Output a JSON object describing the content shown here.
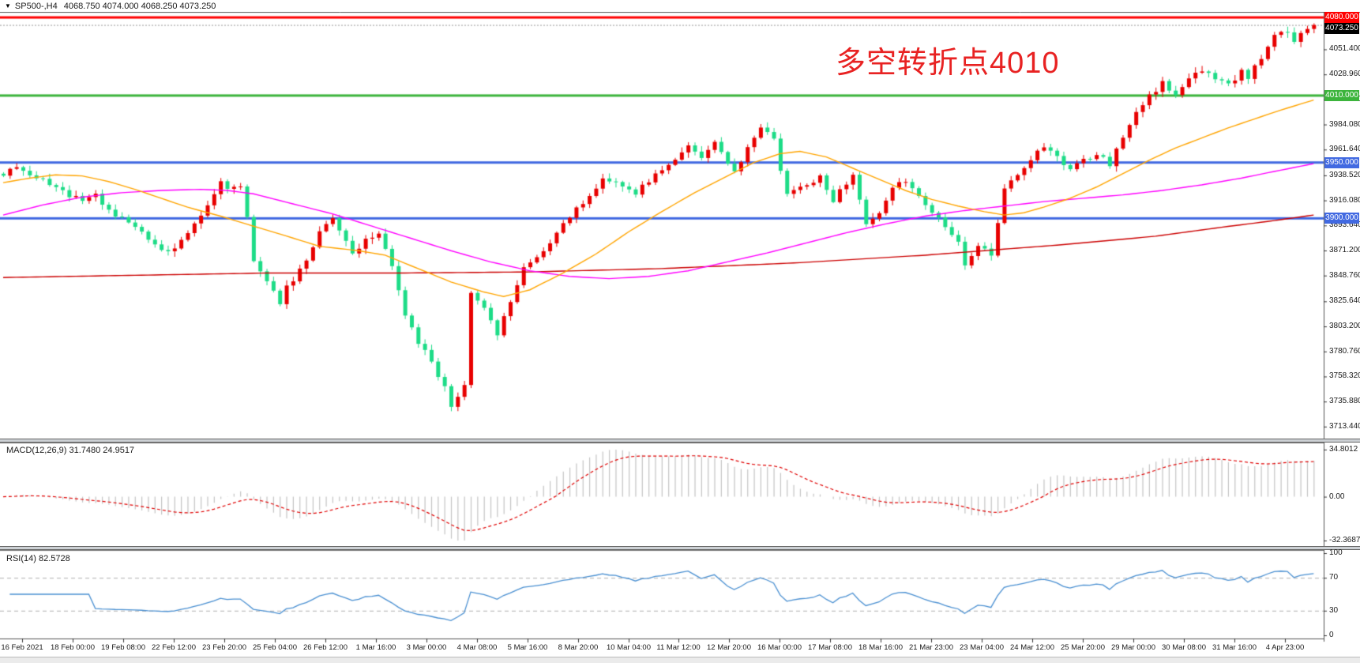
{
  "window": {
    "symbol_timeframe": "SP500-,H4",
    "ohlc_readout": "4068.750 4074.000 4068.250 4073.250",
    "dropdown_icon": "▼"
  },
  "annotation": {
    "text": "多空转折点4010",
    "color": "#e82222"
  },
  "colors": {
    "up_candle": "#e80000",
    "down_candle": "#1ddc87",
    "ma_orange": "#ffa500",
    "ma_magenta": "#ff00ff",
    "ma_red": "#cc0000",
    "hline_red": "#ff0000",
    "hline_green": "#3cb43c",
    "hline_blue": "#4169e1",
    "current_price_bg": "#000000",
    "macd_hist": "#c4c4c4",
    "macd_signal": "#e00000",
    "rsi_line": "#4a90d2",
    "rsi_levels": "#b0b0b0",
    "panel_border": "#555555",
    "axis_text": "#1a1a1a"
  },
  "price_axis": {
    "ticks": [
      "4051.400",
      "4028.960",
      "4006.520",
      "3984.080",
      "3961.640",
      "3938.520",
      "3916.080",
      "3893.640",
      "3871.200",
      "3848.760",
      "3825.640",
      "3803.200",
      "3780.760",
      "3758.320",
      "3735.880",
      "3713.440"
    ],
    "highlights": [
      {
        "label": "4080.000",
        "price": 4080.0,
        "bg": "#ff0000"
      },
      {
        "label": "4073.250",
        "price": 4073.25,
        "bg": "#000000"
      },
      {
        "label": "4010.000",
        "price": 4010.0,
        "bg": "#3cb43c"
      },
      {
        "label": "3950.000",
        "price": 3950.0,
        "bg": "#4169e1"
      },
      {
        "label": "3900.000",
        "price": 3900.0,
        "bg": "#4169e1"
      }
    ]
  },
  "time_axis": {
    "labels": [
      "16 Feb 2021",
      "18 Feb 00:00",
      "19 Feb 08:00",
      "22 Feb 12:00",
      "23 Feb 20:00",
      "25 Feb 04:00",
      "26 Feb 12:00",
      "1 Mar 16:00",
      "3 Mar 00:00",
      "4 Mar 08:00",
      "5 Mar 16:00",
      "8 Mar 20:00",
      "10 Mar 04:00",
      "11 Mar 12:00",
      "12 Mar 20:00",
      "16 Mar 00:00",
      "17 Mar 08:00",
      "18 Mar 16:00",
      "21 Mar 23:00",
      "23 Mar 04:00",
      "24 Mar 12:00",
      "25 Mar 20:00",
      "29 Mar 00:00",
      "30 Mar 08:00",
      "31 Mar 16:00",
      "4 Apr 23:00"
    ]
  },
  "chart_data": {
    "type": "candlestick",
    "symbol": "SP500-",
    "timeframe": "H4",
    "bars": 200,
    "current": {
      "open": 4068.75,
      "high": 4074.0,
      "low": 4068.25,
      "close": 4073.25
    },
    "price_range_visible": [
      3702,
      4085
    ],
    "grid": "off",
    "current_price_line": 4073.25,
    "hlines": [
      {
        "price": 4080,
        "color": "#ff0000",
        "width": 3
      },
      {
        "price": 4010,
        "color": "#3cb43c",
        "width": 3
      },
      {
        "price": 3950,
        "color": "#4169e1",
        "width": 3
      },
      {
        "price": 3900,
        "color": "#4169e1",
        "width": 3
      }
    ],
    "price_path": [
      [
        0,
        3940
      ],
      [
        2,
        3948
      ],
      [
        4,
        3940
      ],
      [
        6,
        3934
      ],
      [
        9,
        3924
      ],
      [
        12,
        3916
      ],
      [
        14,
        3921
      ],
      [
        16,
        3908
      ],
      [
        18,
        3900
      ],
      [
        21,
        3886
      ],
      [
        23,
        3876
      ],
      [
        25,
        3869
      ],
      [
        27,
        3882
      ],
      [
        29,
        3894
      ],
      [
        31,
        3910
      ],
      [
        33,
        3932
      ],
      [
        34,
        3926
      ],
      [
        36,
        3931
      ],
      [
        37,
        3900
      ],
      [
        38,
        3862
      ],
      [
        40,
        3846
      ],
      [
        42,
        3822
      ],
      [
        43,
        3838
      ],
      [
        45,
        3853
      ],
      [
        47,
        3873
      ],
      [
        48,
        3888
      ],
      [
        50,
        3898
      ],
      [
        52,
        3878
      ],
      [
        53,
        3869
      ],
      [
        55,
        3880
      ],
      [
        57,
        3885
      ],
      [
        59,
        3856
      ],
      [
        61,
        3815
      ],
      [
        63,
        3789
      ],
      [
        65,
        3772
      ],
      [
        67,
        3748
      ],
      [
        68,
        3731
      ],
      [
        69,
        3739
      ],
      [
        70,
        3749
      ],
      [
        71,
        3834
      ],
      [
        73,
        3819
      ],
      [
        75,
        3797
      ],
      [
        77,
        3826
      ],
      [
        79,
        3856
      ],
      [
        81,
        3867
      ],
      [
        83,
        3879
      ],
      [
        85,
        3896
      ],
      [
        88,
        3913
      ],
      [
        91,
        3937
      ],
      [
        94,
        3931
      ],
      [
        96,
        3922
      ],
      [
        99,
        3941
      ],
      [
        101,
        3949
      ],
      [
        104,
        3964
      ],
      [
        106,
        3955
      ],
      [
        108,
        3968
      ],
      [
        111,
        3943
      ],
      [
        113,
        3962
      ],
      [
        115,
        3981
      ],
      [
        117,
        3969
      ],
      [
        119,
        3921
      ],
      [
        122,
        3930
      ],
      [
        124,
        3937
      ],
      [
        126,
        3917
      ],
      [
        129,
        3939
      ],
      [
        131,
        3895
      ],
      [
        133,
        3906
      ],
      [
        135,
        3925
      ],
      [
        137,
        3935
      ],
      [
        140,
        3911
      ],
      [
        142,
        3899
      ],
      [
        145,
        3877
      ],
      [
        146,
        3857
      ],
      [
        148,
        3874
      ],
      [
        150,
        3867
      ],
      [
        152,
        3928
      ],
      [
        154,
        3941
      ],
      [
        156,
        3953
      ],
      [
        158,
        3965
      ],
      [
        160,
        3955
      ],
      [
        162,
        3945
      ],
      [
        164,
        3952
      ],
      [
        166,
        3959
      ],
      [
        168,
        3949
      ],
      [
        169,
        3961
      ],
      [
        171,
        3985
      ],
      [
        172,
        3997
      ],
      [
        174,
        4009
      ],
      [
        176,
        4021
      ],
      [
        178,
        4011
      ],
      [
        180,
        4025
      ],
      [
        182,
        4033
      ],
      [
        184,
        4025
      ],
      [
        186,
        4019
      ],
      [
        188,
        4031
      ],
      [
        189,
        4027
      ],
      [
        191,
        4043
      ],
      [
        193,
        4063
      ],
      [
        195,
        4069
      ],
      [
        196,
        4057
      ],
      [
        197,
        4066
      ],
      [
        198,
        4070
      ],
      [
        199,
        4073.25
      ]
    ],
    "ma_orange": [
      [
        0,
        3932
      ],
      [
        4,
        3936
      ],
      [
        8,
        3939
      ],
      [
        12,
        3938
      ],
      [
        16,
        3933
      ],
      [
        20,
        3926
      ],
      [
        24,
        3918
      ],
      [
        28,
        3910
      ],
      [
        33,
        3902
      ],
      [
        38,
        3893
      ],
      [
        42,
        3886
      ],
      [
        48,
        3875
      ],
      [
        54,
        3871
      ],
      [
        58,
        3867
      ],
      [
        63,
        3855
      ],
      [
        68,
        3843
      ],
      [
        73,
        3834
      ],
      [
        76,
        3830
      ],
      [
        80,
        3836
      ],
      [
        85,
        3851
      ],
      [
        90,
        3868
      ],
      [
        95,
        3888
      ],
      [
        100,
        3906
      ],
      [
        105,
        3923
      ],
      [
        110,
        3938
      ],
      [
        114,
        3950
      ],
      [
        118,
        3958
      ],
      [
        121,
        3960
      ],
      [
        125,
        3955
      ],
      [
        129,
        3945
      ],
      [
        133,
        3935
      ],
      [
        137,
        3925
      ],
      [
        141,
        3917
      ],
      [
        145,
        3911
      ],
      [
        149,
        3906
      ],
      [
        152,
        3903
      ],
      [
        155,
        3905
      ],
      [
        158,
        3910
      ],
      [
        162,
        3918
      ],
      [
        166,
        3928
      ],
      [
        170,
        3940
      ],
      [
        174,
        3952
      ],
      [
        178,
        3963
      ],
      [
        182,
        3972
      ],
      [
        186,
        3981
      ],
      [
        190,
        3989
      ],
      [
        194,
        3997
      ],
      [
        199,
        4006
      ]
    ],
    "ma_magenta": [
      [
        0,
        3903
      ],
      [
        6,
        3912
      ],
      [
        12,
        3919
      ],
      [
        18,
        3923
      ],
      [
        24,
        3925
      ],
      [
        30,
        3926
      ],
      [
        34,
        3925
      ],
      [
        38,
        3922
      ],
      [
        44,
        3913
      ],
      [
        50,
        3904
      ],
      [
        56,
        3893
      ],
      [
        62,
        3882
      ],
      [
        68,
        3871
      ],
      [
        74,
        3861
      ],
      [
        80,
        3853
      ],
      [
        86,
        3848
      ],
      [
        92,
        3846
      ],
      [
        98,
        3848
      ],
      [
        104,
        3853
      ],
      [
        110,
        3861
      ],
      [
        116,
        3869
      ],
      [
        122,
        3878
      ],
      [
        128,
        3887
      ],
      [
        134,
        3895
      ],
      [
        140,
        3902
      ],
      [
        146,
        3907
      ],
      [
        152,
        3911
      ],
      [
        158,
        3915
      ],
      [
        164,
        3918
      ],
      [
        170,
        3921
      ],
      [
        176,
        3925
      ],
      [
        182,
        3930
      ],
      [
        188,
        3936
      ],
      [
        193,
        3942
      ],
      [
        199,
        3949
      ]
    ],
    "ma_red": [
      [
        0,
        3847
      ],
      [
        20,
        3849
      ],
      [
        40,
        3851
      ],
      [
        60,
        3851
      ],
      [
        80,
        3852
      ],
      [
        100,
        3855
      ],
      [
        120,
        3860
      ],
      [
        140,
        3867
      ],
      [
        160,
        3876
      ],
      [
        175,
        3884
      ],
      [
        185,
        3892
      ],
      [
        193,
        3898
      ],
      [
        199,
        3903
      ]
    ],
    "macd": {
      "display": "MACD(12,26,9) 31.7480 24.9517",
      "name": "MACD(12,26,9)",
      "main_value": 31.748,
      "signal_value": 24.9517,
      "params": [
        12,
        26,
        9
      ],
      "axis_max": "34.8012",
      "axis_zero": "0.00",
      "axis_min": "-32.3687"
    },
    "rsi": {
      "display": "RSI(14) 82.5728",
      "name": "RSI(14)",
      "value": 82.5728,
      "period": 14,
      "levels": [
        70,
        30
      ],
      "axis": [
        "100",
        "70",
        "30",
        "0"
      ]
    }
  }
}
